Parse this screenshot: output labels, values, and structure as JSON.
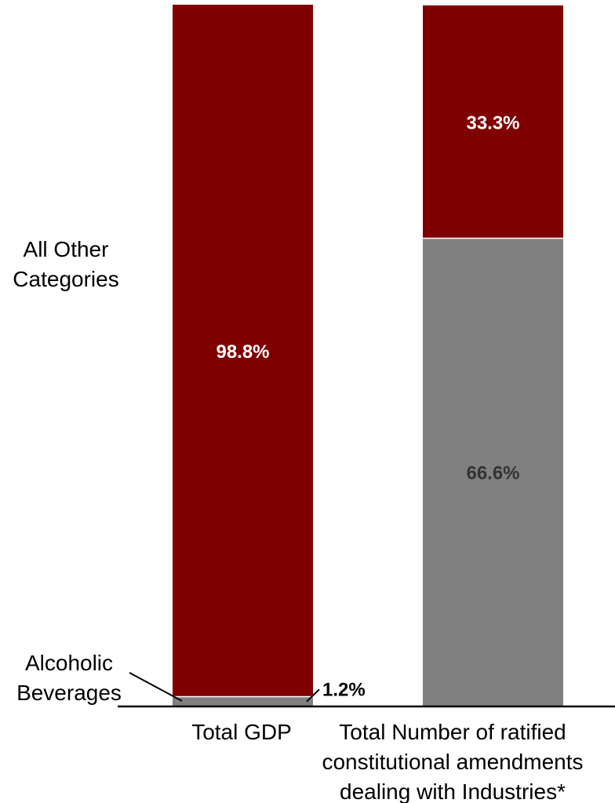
{
  "chart_data": {
    "type": "bar",
    "stacked": true,
    "percent_stacked": true,
    "categories": [
      "Total GDP",
      "Total Number of ratified constitutional amendments dealing with Industries*"
    ],
    "category_label_lines": [
      [
        "Total GDP"
      ],
      [
        "Total Number of ratified",
        "constitutional amendments",
        "dealing with Industries*"
      ]
    ],
    "series": [
      {
        "name": "Alcoholic Beverages",
        "label_lines": [
          "Alcoholic",
          "Beverages"
        ],
        "values": [
          1.2,
          66.6
        ],
        "value_labels": [
          "1.2%",
          "66.6%"
        ],
        "color": "#808080"
      },
      {
        "name": "All Other Categories",
        "label_lines": [
          "All Other",
          "Categories"
        ],
        "values": [
          98.8,
          33.3
        ],
        "value_labels": [
          "98.8%",
          "33.3%"
        ],
        "color": "#800000"
      }
    ],
    "value_label_colors": [
      "#333333",
      "#ffffff"
    ],
    "ylim": [
      0,
      100
    ],
    "grid": false,
    "legend": "left",
    "title": "",
    "xlabel": "",
    "ylabel": ""
  }
}
